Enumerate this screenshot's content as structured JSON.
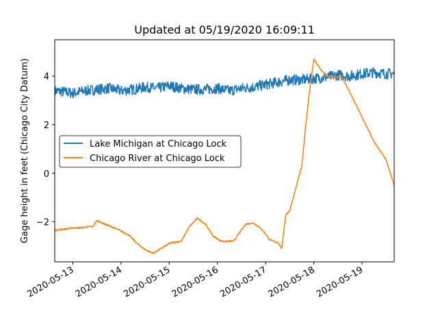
{
  "chart_data": {
    "type": "line",
    "title": "Updated at 05/19/2020 16:09:11",
    "xlabel": "",
    "ylabel": "Gage height in feet (Chicago City Datum)",
    "xlim": [
      "2020-05-12 15:00",
      "2020-05-19 16:00"
    ],
    "ylim": [
      -3.65,
      5.5
    ],
    "xticks": [
      "2020-05-13",
      "2020-05-14",
      "2020-05-15",
      "2020-05-16",
      "2020-05-17",
      "2020-05-18",
      "2020-05-19"
    ],
    "yticks": [
      -2,
      0,
      2,
      4
    ],
    "grid": false,
    "legend_position": "center-left",
    "series": [
      {
        "name": "Lake Michigan at Chicago Lock",
        "color": "#1f77b4",
        "noise": 0.22,
        "x": [
          "2020-05-12 15:00",
          "2020-05-12 20:00",
          "2020-05-13 00:00",
          "2020-05-13 06:00",
          "2020-05-13 12:00",
          "2020-05-13 18:00",
          "2020-05-14 00:00",
          "2020-05-14 06:00",
          "2020-05-14 12:00",
          "2020-05-14 18:00",
          "2020-05-15 00:00",
          "2020-05-15 06:00",
          "2020-05-15 12:00",
          "2020-05-15 18:00",
          "2020-05-16 00:00",
          "2020-05-16 06:00",
          "2020-05-16 12:00",
          "2020-05-16 18:00",
          "2020-05-17 00:00",
          "2020-05-17 06:00",
          "2020-05-17 12:00",
          "2020-05-17 18:00",
          "2020-05-18 00:00",
          "2020-05-18 06:00",
          "2020-05-18 12:00",
          "2020-05-18 18:00",
          "2020-05-19 00:00",
          "2020-05-19 06:00",
          "2020-05-19 12:00",
          "2020-05-19 16:00"
        ],
        "y": [
          3.4,
          3.35,
          3.3,
          3.4,
          3.45,
          3.5,
          3.4,
          3.45,
          3.55,
          3.5,
          3.6,
          3.5,
          3.45,
          3.45,
          3.5,
          3.4,
          3.5,
          3.55,
          3.65,
          3.75,
          3.85,
          3.85,
          3.9,
          3.95,
          4.05,
          4.0,
          4.1,
          4.15,
          4.1,
          4.1
        ]
      },
      {
        "name": "Chicago River at Chicago Lock",
        "color": "#ff7f0e",
        "noise": 0.03,
        "x": [
          "2020-05-12 15:00",
          "2020-05-12 20:00",
          "2020-05-13 00:00",
          "2020-05-13 04:00",
          "2020-05-13 08:00",
          "2020-05-13 10:00",
          "2020-05-13 12:00",
          "2020-05-13 16:00",
          "2020-05-13 22:00",
          "2020-05-14 04:00",
          "2020-05-14 08:00",
          "2020-05-14 12:00",
          "2020-05-14 16:00",
          "2020-05-14 20:00",
          "2020-05-15 00:00",
          "2020-05-15 02:00",
          "2020-05-15 06:00",
          "2020-05-15 10:00",
          "2020-05-15 14:00",
          "2020-05-15 18:00",
          "2020-05-15 22:00",
          "2020-05-16 02:00",
          "2020-05-16 08:00",
          "2020-05-16 14:00",
          "2020-05-16 18:00",
          "2020-05-16 22:00",
          "2020-05-17 00:00",
          "2020-05-17 02:00",
          "2020-05-17 04:00",
          "2020-05-17 06:00",
          "2020-05-17 08:00",
          "2020-05-17 10:00",
          "2020-05-17 12:00",
          "2020-05-17 14:00",
          "2020-05-17 16:00",
          "2020-05-17 18:00",
          "2020-05-17 20:00",
          "2020-05-17 22:00",
          "2020-05-18 00:00",
          "2020-05-18 04:00",
          "2020-05-18 08:00",
          "2020-05-18 14:00",
          "2020-05-18 20:00",
          "2020-05-19 00:00",
          "2020-05-19 06:00",
          "2020-05-19 12:00",
          "2020-05-19 16:00"
        ],
        "y": [
          -2.35,
          -2.3,
          -2.25,
          -2.25,
          -2.2,
          -2.2,
          -1.95,
          -2.1,
          -2.3,
          -2.55,
          -2.9,
          -3.15,
          -3.3,
          -3.1,
          -2.9,
          -2.85,
          -2.8,
          -2.2,
          -1.85,
          -2.1,
          -2.6,
          -2.8,
          -2.8,
          -2.1,
          -2.05,
          -2.3,
          -2.5,
          -2.75,
          -2.8,
          -2.85,
          -3.1,
          -1.7,
          -1.55,
          -0.95,
          -0.3,
          0.3,
          2.0,
          3.5,
          4.7,
          4.2,
          3.95,
          3.95,
          3.0,
          2.3,
          1.3,
          0.55,
          -0.5
        ]
      }
    ]
  }
}
